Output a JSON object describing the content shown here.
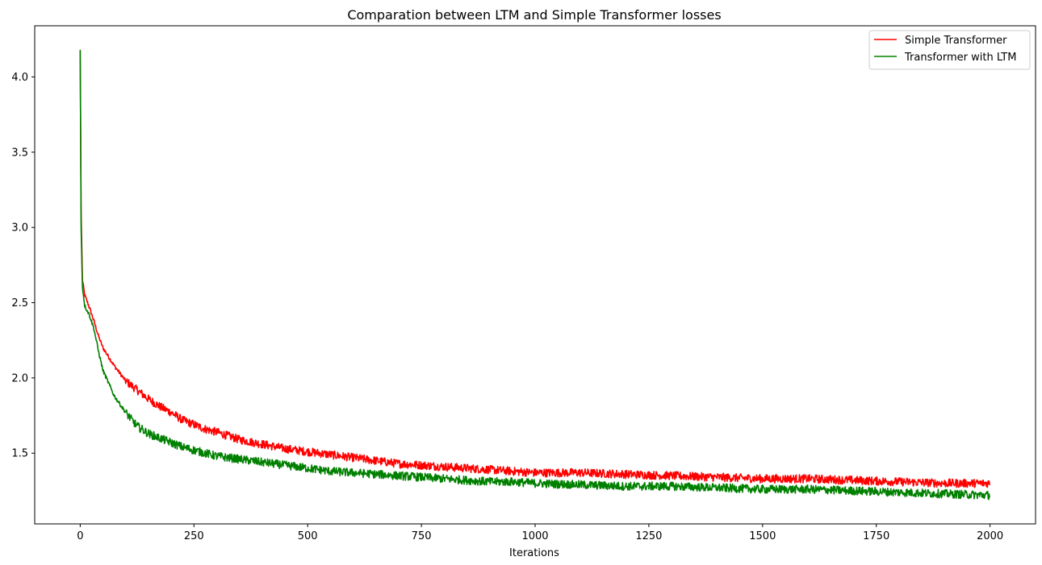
{
  "chart_data": {
    "type": "line",
    "title": "Comparation between LTM and Simple Transformer losses",
    "xlabel": "Iterations",
    "ylabel": "",
    "xlim": [
      -100,
      2100
    ],
    "ylim": [
      1.03,
      4.34
    ],
    "xticks": [
      0,
      250,
      500,
      750,
      1000,
      1250,
      1500,
      1750,
      2000
    ],
    "yticks": [
      1.5,
      2.0,
      2.5,
      3.0,
      3.5,
      4.0
    ],
    "xtick_labels": [
      "0",
      "250",
      "500",
      "750",
      "1000",
      "1250",
      "1500",
      "1750",
      "2000"
    ],
    "ytick_labels": [
      "1.5",
      "2.0",
      "2.5",
      "3.0",
      "3.5",
      "4.0"
    ],
    "grid": false,
    "legend_position": "top-right",
    "series": [
      {
        "name": "Simple Transformer",
        "color": "#ff0000",
        "x": [
          0,
          2,
          5,
          10,
          20,
          30,
          40,
          50,
          75,
          100,
          125,
          150,
          175,
          200,
          225,
          250,
          275,
          300,
          350,
          400,
          450,
          500,
          550,
          600,
          650,
          700,
          750,
          800,
          850,
          900,
          950,
          1000,
          1100,
          1200,
          1300,
          1400,
          1500,
          1600,
          1700,
          1800,
          1900,
          2000
        ],
        "y": [
          4.18,
          3.1,
          2.65,
          2.55,
          2.47,
          2.38,
          2.28,
          2.2,
          2.08,
          1.98,
          1.92,
          1.86,
          1.81,
          1.77,
          1.72,
          1.69,
          1.66,
          1.64,
          1.59,
          1.56,
          1.53,
          1.51,
          1.49,
          1.47,
          1.45,
          1.43,
          1.42,
          1.41,
          1.4,
          1.39,
          1.38,
          1.37,
          1.37,
          1.36,
          1.35,
          1.34,
          1.33,
          1.33,
          1.32,
          1.31,
          1.3,
          1.3
        ]
      },
      {
        "name": "Transformer with LTM",
        "color": "#008000",
        "x": [
          0,
          2,
          5,
          10,
          20,
          30,
          40,
          50,
          75,
          100,
          125,
          150,
          175,
          200,
          225,
          250,
          275,
          300,
          350,
          400,
          450,
          500,
          550,
          600,
          650,
          700,
          750,
          800,
          850,
          900,
          950,
          1000,
          1100,
          1200,
          1300,
          1400,
          1500,
          1600,
          1700,
          1800,
          1900,
          2000
        ],
        "y": [
          4.18,
          3.0,
          2.6,
          2.48,
          2.42,
          2.33,
          2.18,
          2.05,
          1.88,
          1.77,
          1.68,
          1.63,
          1.6,
          1.57,
          1.54,
          1.52,
          1.5,
          1.48,
          1.46,
          1.44,
          1.42,
          1.4,
          1.38,
          1.37,
          1.36,
          1.35,
          1.34,
          1.33,
          1.32,
          1.31,
          1.31,
          1.3,
          1.29,
          1.28,
          1.28,
          1.27,
          1.26,
          1.26,
          1.25,
          1.24,
          1.23,
          1.22
        ]
      }
    ]
  }
}
